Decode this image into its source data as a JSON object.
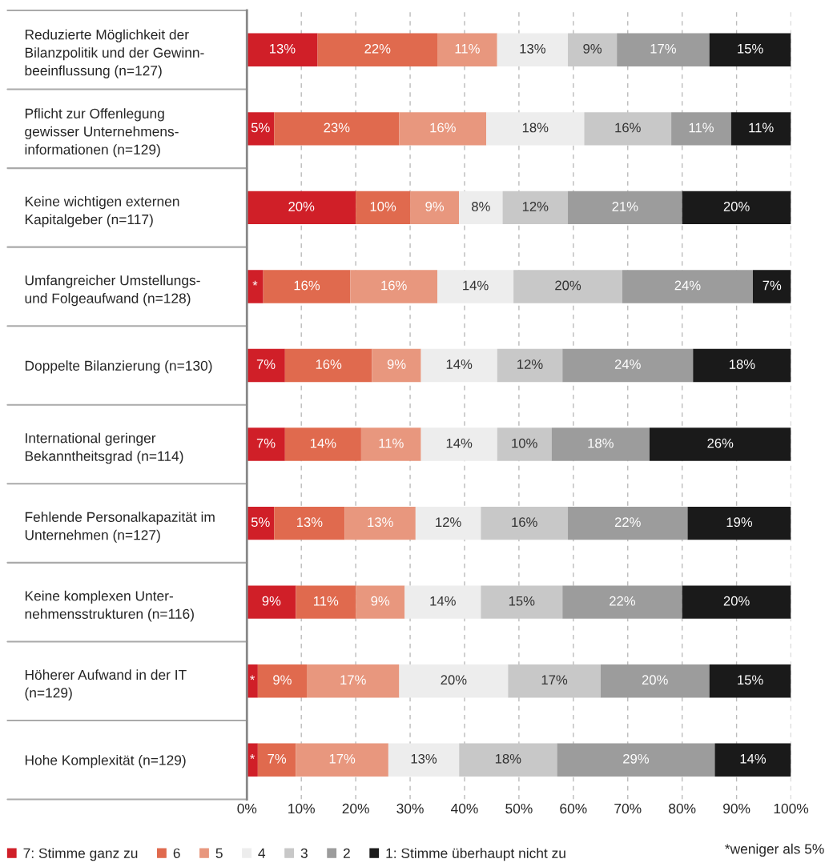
{
  "chart_data": {
    "type": "bar",
    "orientation": "horizontal",
    "stacked": true,
    "categories": [
      "Reduzierte Möglichkeit der\nBilanzpolitik und der Gewinn-\nbeeinflussung (n=127)",
      "Pflicht zur Offenlegung\ngewisser Unternehmens-\ninformationen (n=129)",
      "Keine wichtigen externen\nKapitalgeber (n=117)",
      "Umfangreicher Umstellungs-\nund Folgeaufwand (n=128)",
      "Doppelte Bilanzierung (n=130)",
      "International geringer\nBekanntheitsgrad (n=114)",
      "Fehlende Personalkapazität im\nUnternehmen (n=127)",
      "Keine komplexen Unter-\nnehmensstrukturen (n=116)",
      "Höherer Aufwand in der IT\n(n=129)",
      "Hohe Komplexität (n=129)"
    ],
    "series": [
      {
        "name": "7: Stimme ganz zu",
        "color": "#d01f28",
        "values": [
          13,
          5,
          20,
          3,
          7,
          7,
          5,
          9,
          2,
          2
        ],
        "value_labels": [
          "13%",
          "5%",
          "20%",
          "*",
          "7%",
          "7%",
          "5%",
          "9%",
          "*",
          "*"
        ]
      },
      {
        "name": "6",
        "color": "#e06a4e",
        "values": [
          22,
          23,
          10,
          16,
          16,
          14,
          13,
          11,
          9,
          7
        ],
        "value_labels": [
          "22%",
          "23%",
          "10%",
          "16%",
          "16%",
          "14%",
          "13%",
          "11%",
          "9%",
          "7%"
        ]
      },
      {
        "name": "5",
        "color": "#e8977e",
        "values": [
          11,
          16,
          9,
          16,
          9,
          11,
          13,
          9,
          17,
          17
        ],
        "value_labels": [
          "11%",
          "16%",
          "9%",
          "16%",
          "9%",
          "11%",
          "13%",
          "9%",
          "17%",
          "17%"
        ]
      },
      {
        "name": "4",
        "color": "#ededed",
        "values": [
          13,
          18,
          8,
          14,
          14,
          14,
          12,
          14,
          20,
          13
        ],
        "value_labels": [
          "13%",
          "18%",
          "8%",
          "14%",
          "14%",
          "14%",
          "12%",
          "14%",
          "20%",
          "13%"
        ]
      },
      {
        "name": "3",
        "color": "#c8c8c8",
        "values": [
          9,
          16,
          12,
          20,
          12,
          10,
          16,
          15,
          17,
          18
        ],
        "value_labels": [
          "9%",
          "16%",
          "12%",
          "20%",
          "12%",
          "10%",
          "16%",
          "15%",
          "17%",
          "18%"
        ]
      },
      {
        "name": "2",
        "color": "#9c9c9c",
        "values": [
          17,
          11,
          21,
          24,
          24,
          18,
          22,
          22,
          20,
          29
        ],
        "value_labels": [
          "17%",
          "11%",
          "21%",
          "24%",
          "24%",
          "18%",
          "22%",
          "22%",
          "20%",
          "29%"
        ]
      },
      {
        "name": "1: Stimme überhaupt nicht zu",
        "color": "#1a1a1a",
        "values": [
          15,
          11,
          20,
          7,
          18,
          26,
          19,
          20,
          15,
          14
        ],
        "value_labels": [
          "15%",
          "11%",
          "20%",
          "7%",
          "18%",
          "26%",
          "19%",
          "20%",
          "15%",
          "14%"
        ]
      }
    ],
    "xlim": [
      0,
      100
    ],
    "xticks": [
      {
        "value": 0,
        "label": "0%"
      },
      {
        "value": 10,
        "label": "10%"
      },
      {
        "value": 20,
        "label": "20%"
      },
      {
        "value": 30,
        "label": "30%"
      },
      {
        "value": 40,
        "label": "40%"
      },
      {
        "value": 50,
        "label": "50%"
      },
      {
        "value": 60,
        "label": "60%"
      },
      {
        "value": 70,
        "label": "70%"
      },
      {
        "value": 80,
        "label": "80%"
      },
      {
        "value": 90,
        "label": "90%"
      },
      {
        "value": 100,
        "label": "100%"
      }
    ],
    "grid": "x",
    "legend": "bottom",
    "annotations": [
      "*weniger als 5%"
    ]
  }
}
